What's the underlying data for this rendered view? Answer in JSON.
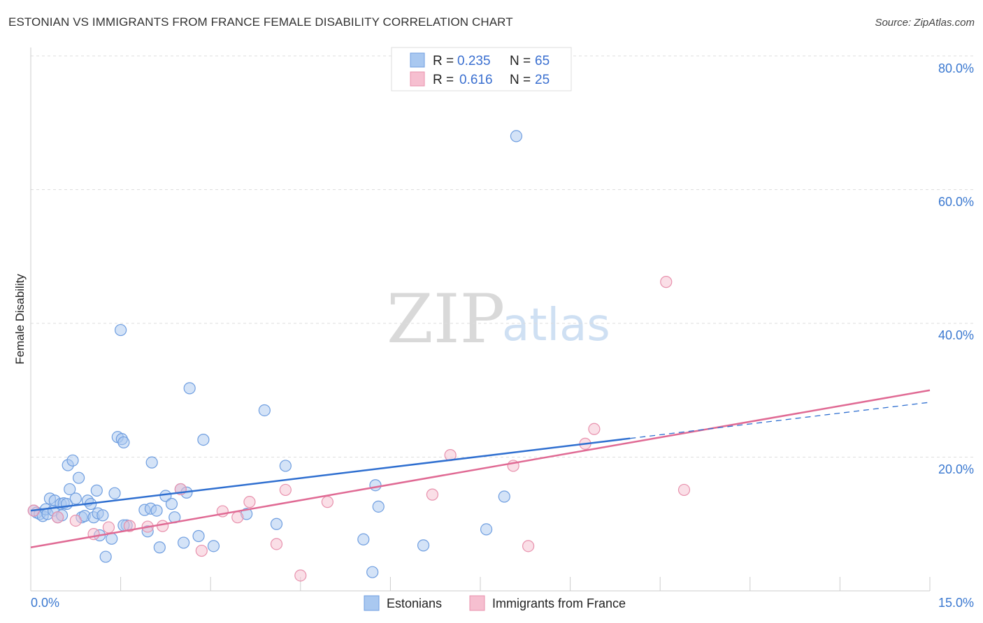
{
  "header": {
    "title": "ESTONIAN VS IMMIGRANTS FROM FRANCE FEMALE DISABILITY CORRELATION CHART",
    "source": "Source: ZipAtlas.com"
  },
  "watermark": {
    "zip": "ZIP",
    "atlas": "atlas"
  },
  "colors": {
    "blue_fill": "#a9c8f0",
    "blue_stroke": "#6f9ee0",
    "blue_line": "#2f6fd0",
    "pink_fill": "#f6bfd0",
    "pink_stroke": "#e891ad",
    "pink_line": "#e06a94",
    "grid": "#dddddd",
    "tick_label": "#3a78d0"
  },
  "legend": {
    "rows": [
      {
        "r_label": "R = ",
        "r_value": "0.235",
        "n_label": "N = ",
        "n_value": "65"
      },
      {
        "r_label": "R = ",
        "r_value": "0.616",
        "n_label": "N = ",
        "n_value": "25"
      }
    ]
  },
  "chart_data": {
    "type": "scatter",
    "title": "ESTONIAN VS IMMIGRANTS FROM FRANCE FEMALE DISABILITY CORRELATION CHART",
    "xlabel": "",
    "ylabel": "Female Disability",
    "xlim": [
      0,
      15
    ],
    "ylim": [
      0,
      80
    ],
    "x_tick_labels": [
      "0.0%",
      "15.0%"
    ],
    "y_ticks": [
      20,
      40,
      60,
      80
    ],
    "y_tick_labels": [
      "20.0%",
      "40.0%",
      "60.0%",
      "80.0%"
    ],
    "grid": true,
    "legend_position": "top-center",
    "series": [
      {
        "name": "Estonians",
        "color": "#a9c8f0",
        "r": 0.235,
        "n": 65,
        "trend": {
          "x0": 0.0,
          "y0": 12.0,
          "x1": 10.0,
          "y1": 22.8,
          "dash_to_x": 15.0,
          "dash_to_y": 28.2
        },
        "points": [
          [
            0.05,
            12.0
          ],
          [
            0.1,
            11.7
          ],
          [
            0.15,
            11.5
          ],
          [
            0.2,
            11.2
          ],
          [
            0.25,
            12.2
          ],
          [
            0.28,
            11.5
          ],
          [
            0.32,
            13.8
          ],
          [
            0.38,
            12.0
          ],
          [
            0.4,
            13.5
          ],
          [
            0.45,
            11.0
          ],
          [
            0.5,
            13.0
          ],
          [
            0.52,
            11.3
          ],
          [
            0.55,
            13.1
          ],
          [
            0.6,
            13.0
          ],
          [
            0.62,
            18.8
          ],
          [
            0.65,
            15.2
          ],
          [
            0.7,
            19.5
          ],
          [
            0.75,
            13.8
          ],
          [
            0.8,
            16.9
          ],
          [
            0.85,
            11.0
          ],
          [
            0.9,
            11.2
          ],
          [
            0.95,
            13.5
          ],
          [
            1.0,
            13.0
          ],
          [
            1.05,
            11.0
          ],
          [
            1.1,
            15.0
          ],
          [
            1.12,
            11.6
          ],
          [
            1.15,
            8.3
          ],
          [
            1.2,
            11.3
          ],
          [
            1.25,
            5.1
          ],
          [
            1.35,
            7.8
          ],
          [
            1.4,
            14.6
          ],
          [
            1.45,
            23.0
          ],
          [
            1.5,
            39.0
          ],
          [
            1.52,
            22.7
          ],
          [
            1.55,
            22.2
          ],
          [
            1.6,
            9.8
          ],
          [
            1.9,
            12.1
          ],
          [
            1.95,
            8.9
          ],
          [
            2.0,
            12.3
          ],
          [
            2.02,
            19.2
          ],
          [
            2.1,
            12.0
          ],
          [
            2.15,
            6.5
          ],
          [
            2.25,
            14.2
          ],
          [
            2.35,
            13.0
          ],
          [
            2.4,
            11.0
          ],
          [
            2.5,
            15.2
          ],
          [
            2.55,
            7.2
          ],
          [
            2.6,
            14.7
          ],
          [
            2.65,
            30.3
          ],
          [
            2.8,
            8.2
          ],
          [
            2.88,
            22.6
          ],
          [
            3.05,
            6.7
          ],
          [
            3.6,
            11.5
          ],
          [
            3.9,
            27.0
          ],
          [
            4.1,
            10.0
          ],
          [
            4.25,
            18.7
          ],
          [
            5.55,
            7.7
          ],
          [
            5.7,
            2.8
          ],
          [
            5.75,
            15.8
          ],
          [
            5.8,
            12.6
          ],
          [
            6.55,
            6.8
          ],
          [
            7.6,
            9.2
          ],
          [
            7.9,
            14.1
          ],
          [
            8.1,
            68.0
          ],
          [
            1.55,
            9.8
          ]
        ]
      },
      {
        "name": "Immigrants from France",
        "color": "#f6bfd0",
        "r": 0.616,
        "n": 25,
        "trend": {
          "x0": 0.0,
          "y0": 6.5,
          "x1": 15.0,
          "y1": 30.0
        },
        "points": [
          [
            0.05,
            12.0
          ],
          [
            0.45,
            11.0
          ],
          [
            0.75,
            10.5
          ],
          [
            1.05,
            8.5
          ],
          [
            1.3,
            9.5
          ],
          [
            1.65,
            9.7
          ],
          [
            1.95,
            9.6
          ],
          [
            2.2,
            9.7
          ],
          [
            2.5,
            15.2
          ],
          [
            2.85,
            6.0
          ],
          [
            3.2,
            11.9
          ],
          [
            3.45,
            11.0
          ],
          [
            3.65,
            13.3
          ],
          [
            4.1,
            7.0
          ],
          [
            4.25,
            15.1
          ],
          [
            4.5,
            2.3
          ],
          [
            4.95,
            13.3
          ],
          [
            6.7,
            14.4
          ],
          [
            7.0,
            20.3
          ],
          [
            8.05,
            18.7
          ],
          [
            8.3,
            6.7
          ],
          [
            9.25,
            22.0
          ],
          [
            9.4,
            24.2
          ],
          [
            10.6,
            46.2
          ],
          [
            10.9,
            15.1
          ]
        ]
      }
    ]
  }
}
